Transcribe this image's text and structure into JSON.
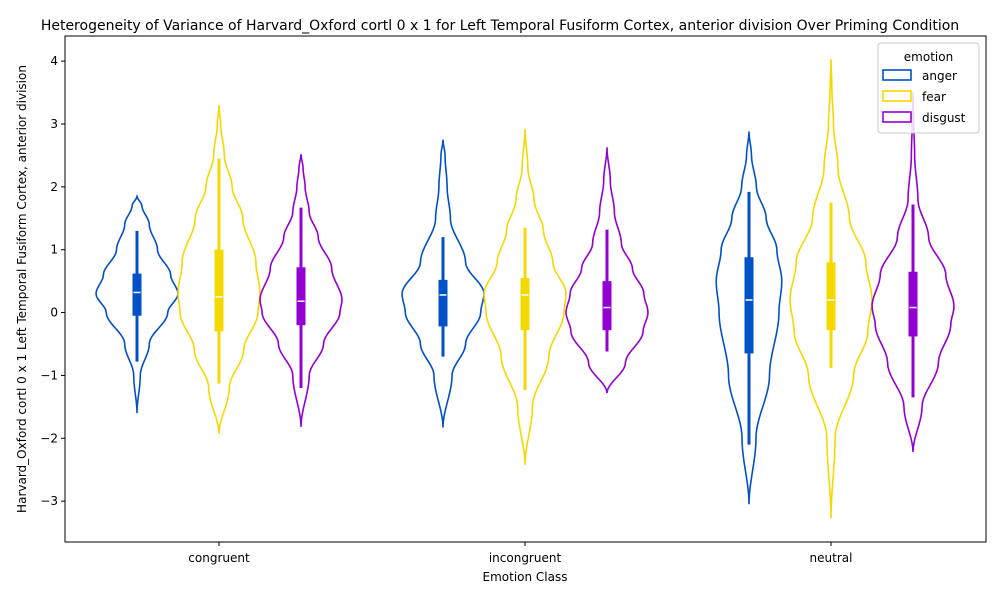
{
  "chart_data": {
    "type": "violin",
    "title": "Heterogeneity of Variance of Harvard_Oxford cortl 0 x 1 for Left Temporal Fusiform Cortex, anterior division Over Priming Condition",
    "xlabel": "Emotion Class",
    "ylabel": "Harvard_Oxford cortl 0 x 1 Left Temporal Fusiform Cortex, anterior division",
    "categories": [
      "congruent",
      "incongruent",
      "neutral"
    ],
    "ylim": [
      -3.65,
      4.4
    ],
    "yticks": [
      -3,
      -2,
      -1,
      0,
      1,
      2,
      3,
      4
    ],
    "ytick_labels": [
      "−3",
      "−2",
      "−1",
      "0",
      "1",
      "2",
      "3",
      "4"
    ],
    "grid": false,
    "legend": {
      "title": "emotion",
      "position": "top-right"
    },
    "series": [
      {
        "name": "anger",
        "color": "#0050c8",
        "groups": [
          {
            "category": "congruent",
            "kde_min": -1.6,
            "kde_max": 1.85,
            "whisker_low": -0.78,
            "q1": -0.05,
            "median": 0.32,
            "q3": 0.62,
            "whisker_high": 1.3,
            "profile": [
              [
                -1.6,
                0.0
              ],
              [
                -1.0,
                0.08
              ],
              [
                -0.5,
                0.3
              ],
              [
                0.0,
                0.75
              ],
              [
                0.3,
                1.0
              ],
              [
                0.6,
                0.82
              ],
              [
                1.0,
                0.5
              ],
              [
                1.4,
                0.3
              ],
              [
                1.7,
                0.12
              ],
              [
                1.85,
                0.0
              ]
            ]
          },
          {
            "category": "incongruent",
            "kde_min": -1.83,
            "kde_max": 2.75,
            "whisker_low": -0.7,
            "q1": -0.22,
            "median": 0.28,
            "q3": 0.52,
            "whisker_high": 1.2,
            "profile": [
              [
                -1.83,
                0.0
              ],
              [
                -1.0,
                0.22
              ],
              [
                -0.5,
                0.55
              ],
              [
                0.0,
                0.92
              ],
              [
                0.3,
                1.0
              ],
              [
                0.8,
                0.55
              ],
              [
                1.5,
                0.18
              ],
              [
                2.0,
                0.1
              ],
              [
                2.5,
                0.05
              ],
              [
                2.75,
                0.0
              ]
            ]
          },
          {
            "category": "neutral",
            "kde_min": -3.05,
            "kde_max": 2.88,
            "whisker_low": -2.1,
            "q1": -0.65,
            "median": 0.2,
            "q3": 0.88,
            "whisker_high": 1.92,
            "profile": [
              [
                -3.05,
                0.0
              ],
              [
                -2.0,
                0.17
              ],
              [
                -1.0,
                0.5
              ],
              [
                0.0,
                0.73
              ],
              [
                0.5,
                0.8
              ],
              [
                1.0,
                0.68
              ],
              [
                1.5,
                0.42
              ],
              [
                2.0,
                0.18
              ],
              [
                2.5,
                0.06
              ],
              [
                2.88,
                0.0
              ]
            ]
          }
        ]
      },
      {
        "name": "fear",
        "color": "#f5d800",
        "groups": [
          {
            "category": "congruent",
            "kde_min": -1.93,
            "kde_max": 3.3,
            "whisker_low": -1.13,
            "q1": -0.3,
            "median": 0.25,
            "q3": 1.0,
            "whisker_high": 2.45,
            "profile": [
              [
                -1.93,
                0.0
              ],
              [
                -1.2,
                0.25
              ],
              [
                -0.6,
                0.6
              ],
              [
                0.0,
                0.95
              ],
              [
                0.3,
                1.0
              ],
              [
                0.8,
                0.9
              ],
              [
                1.5,
                0.58
              ],
              [
                2.0,
                0.32
              ],
              [
                2.5,
                0.13
              ],
              [
                3.0,
                0.04
              ],
              [
                3.3,
                0.0
              ]
            ]
          },
          {
            "category": "incongruent",
            "kde_min": -2.42,
            "kde_max": 2.92,
            "whisker_low": -1.23,
            "q1": -0.28,
            "median": 0.28,
            "q3": 0.55,
            "whisker_high": 1.35,
            "profile": [
              [
                -2.42,
                0.0
              ],
              [
                -1.5,
                0.18
              ],
              [
                -0.7,
                0.58
              ],
              [
                0.0,
                0.95
              ],
              [
                0.3,
                1.0
              ],
              [
                0.8,
                0.68
              ],
              [
                1.3,
                0.45
              ],
              [
                1.8,
                0.22
              ],
              [
                2.3,
                0.07
              ],
              [
                2.92,
                0.0
              ]
            ]
          },
          {
            "category": "neutral",
            "kde_min": -3.27,
            "kde_max": 4.03,
            "whisker_low": -0.88,
            "q1": -0.28,
            "median": 0.2,
            "q3": 0.8,
            "whisker_high": 1.75,
            "profile": [
              [
                -3.27,
                0.0
              ],
              [
                -2.0,
                0.1
              ],
              [
                -1.0,
                0.55
              ],
              [
                -0.3,
                0.9
              ],
              [
                0.2,
                1.0
              ],
              [
                0.8,
                0.85
              ],
              [
                1.5,
                0.45
              ],
              [
                2.3,
                0.17
              ],
              [
                3.0,
                0.06
              ],
              [
                3.6,
                0.02
              ],
              [
                4.03,
                0.0
              ]
            ]
          }
        ]
      },
      {
        "name": "disgust",
        "color": "#9400d3",
        "groups": [
          {
            "category": "congruent",
            "kde_min": -1.82,
            "kde_max": 2.52,
            "whisker_low": -1.2,
            "q1": -0.2,
            "median": 0.18,
            "q3": 0.72,
            "whisker_high": 1.67,
            "profile": [
              [
                -1.82,
                0.0
              ],
              [
                -1.0,
                0.2
              ],
              [
                -0.5,
                0.55
              ],
              [
                0.0,
                0.95
              ],
              [
                0.2,
                1.0
              ],
              [
                0.7,
                0.75
              ],
              [
                1.2,
                0.42
              ],
              [
                1.6,
                0.2
              ],
              [
                2.0,
                0.1
              ],
              [
                2.3,
                0.05
              ],
              [
                2.52,
                0.0
              ]
            ]
          },
          {
            "category": "incongruent",
            "kde_min": -1.28,
            "kde_max": 2.63,
            "whisker_low": -0.62,
            "q1": -0.28,
            "median": 0.08,
            "q3": 0.5,
            "whisker_high": 1.32,
            "profile": [
              [
                -1.28,
                0.0
              ],
              [
                -0.8,
                0.45
              ],
              [
                -0.3,
                0.88
              ],
              [
                0.0,
                1.0
              ],
              [
                0.3,
                0.9
              ],
              [
                0.7,
                0.62
              ],
              [
                1.1,
                0.35
              ],
              [
                1.6,
                0.18
              ],
              [
                2.1,
                0.08
              ],
              [
                2.63,
                0.0
              ]
            ]
          },
          {
            "category": "neutral",
            "kde_min": -2.22,
            "kde_max": 3.5,
            "whisker_low": -1.35,
            "q1": -0.38,
            "median": 0.08,
            "q3": 0.65,
            "whisker_high": 1.72,
            "profile": [
              [
                -2.22,
                0.0
              ],
              [
                -1.5,
                0.22
              ],
              [
                -0.8,
                0.62
              ],
              [
                -0.2,
                0.92
              ],
              [
                0.1,
                1.0
              ],
              [
                0.6,
                0.8
              ],
              [
                1.2,
                0.38
              ],
              [
                1.8,
                0.12
              ],
              [
                2.5,
                0.04
              ],
              [
                3.0,
                0.02
              ],
              [
                3.5,
                0.0
              ]
            ]
          }
        ]
      }
    ]
  }
}
